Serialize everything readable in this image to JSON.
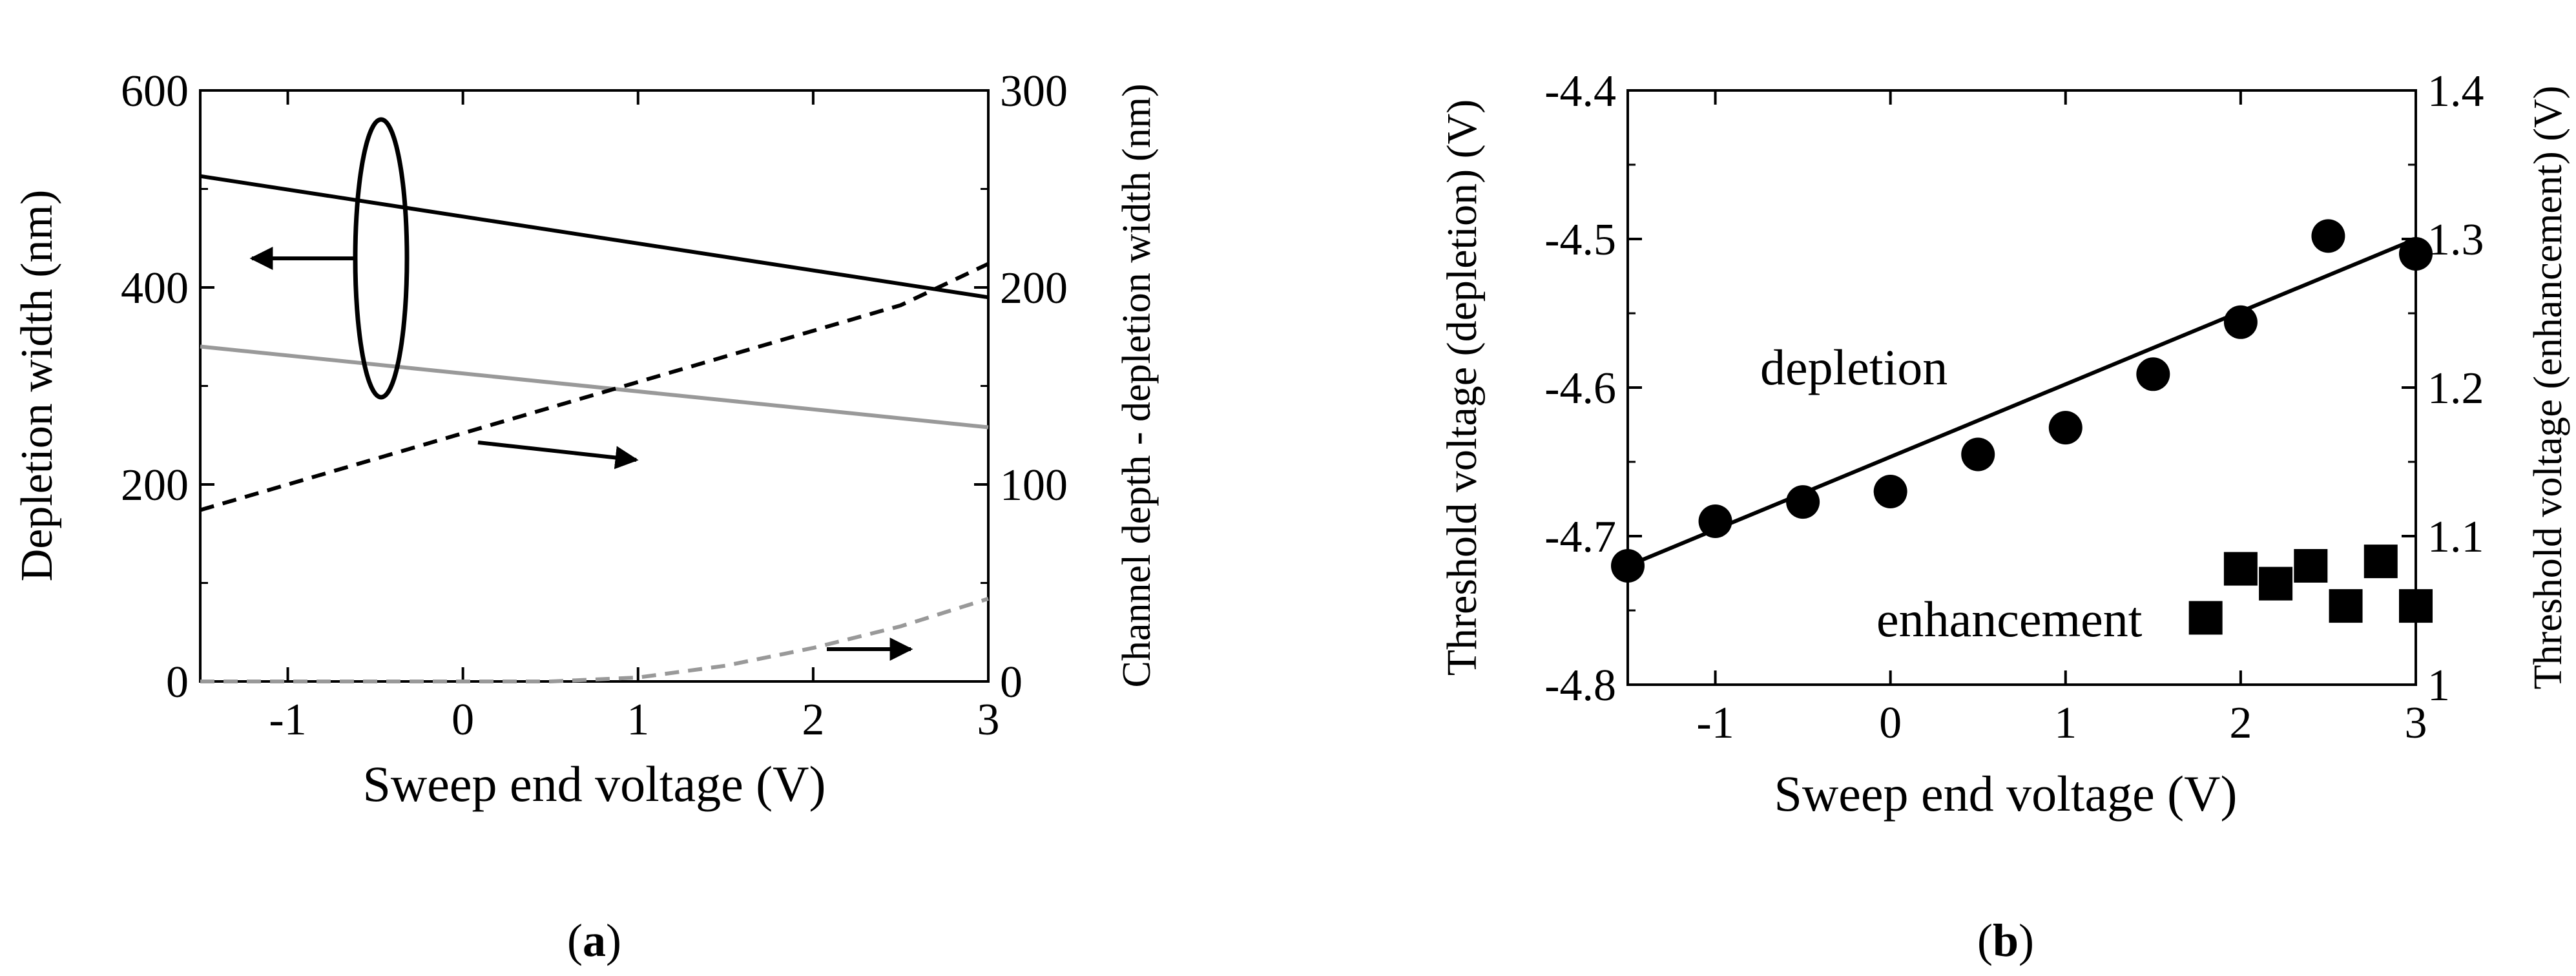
{
  "chart_data": [
    {
      "type": "line",
      "panel_label": "a",
      "xlabel": "Sweep end voltage (V)",
      "ylabel": "Depletion width (nm)",
      "y2label": "Channel depth - depletion width (nm)",
      "xlim": [
        -1.5,
        3
      ],
      "ylim": [
        0,
        600
      ],
      "y2lim": [
        0,
        300
      ],
      "xticks": [
        -1,
        0,
        1,
        2,
        3
      ],
      "yticks": [
        0,
        200,
        400,
        600
      ],
      "y2ticks": [
        0,
        100,
        200,
        300
      ],
      "series": [
        {
          "name": "depletion width (solid black)",
          "axis": "left",
          "color": "#000000",
          "dash": "solid",
          "x": [
            -1.5,
            3
          ],
          "y": [
            513,
            390
          ]
        },
        {
          "name": "depletion width (solid gray)",
          "axis": "left",
          "color": "#999999",
          "dash": "solid",
          "x": [
            -1.5,
            3
          ],
          "y": [
            340,
            258
          ]
        },
        {
          "name": "channel depth - depletion width (dashed black)",
          "axis": "right",
          "color": "#000000",
          "dash": "dashed",
          "x": [
            -1.5,
            -1,
            -0.5,
            0,
            0.5,
            1,
            1.5,
            2,
            2.5,
            3
          ],
          "y": [
            87,
            100,
            113,
            126,
            139,
            152,
            165,
            178,
            191,
            212
          ]
        },
        {
          "name": "channel depth - depletion width (dashed gray)",
          "axis": "right",
          "color": "#999999",
          "dash": "dashed",
          "x": [
            -1.5,
            0.5,
            1.0,
            1.5,
            2.0,
            2.5,
            3.0
          ],
          "y": [
            0,
            0,
            2,
            8,
            17,
            28,
            42
          ]
        }
      ]
    },
    {
      "type": "scatter",
      "panel_label": "b",
      "xlabel": "Sweep end voltage (V)",
      "ylabel": "Threshold voltage (depletion) (V)",
      "y2label": "Threshold voltage (enhancement) (V)",
      "xlim": [
        -1.5,
        3
      ],
      "ylim": [
        -4.8,
        -4.4
      ],
      "y2lim": [
        1.0,
        1.4
      ],
      "xticks": [
        -1,
        0,
        1,
        2,
        3
      ],
      "yticks": [
        -4.8,
        -4.7,
        -4.6,
        -4.5,
        -4.4
      ],
      "ytick_labels": [
        "-4.8",
        "-4.7",
        "-4.6",
        "-4.5",
        "-4.4"
      ],
      "y2ticks": [
        1.0,
        1.1,
        1.2,
        1.3,
        1.4
      ],
      "y2tick_labels": [
        "1",
        "1.1",
        "1.2",
        "1.3",
        "1.4"
      ],
      "annotations": [
        "depletion",
        "enhancement"
      ],
      "series": [
        {
          "name": "depletion",
          "axis": "left",
          "marker": "circle",
          "x": [
            -1.5,
            -1.0,
            -0.5,
            0.0,
            0.5,
            1.0,
            1.5,
            2.0,
            2.5,
            3.0
          ],
          "y": [
            -4.72,
            -4.69,
            -4.677,
            -4.67,
            -4.645,
            -4.627,
            -4.591,
            -4.556,
            -4.498,
            -4.51
          ]
        },
        {
          "name": "depletion fit",
          "axis": "left",
          "line": "solid",
          "x": [
            -1.5,
            3.0
          ],
          "y": [
            -4.72,
            -4.5
          ]
        },
        {
          "name": "enhancement",
          "axis": "right",
          "marker": "square",
          "x": [
            1.8,
            2.0,
            2.2,
            2.4,
            2.6,
            2.8,
            3.0
          ],
          "y": [
            1.045,
            1.078,
            1.068,
            1.08,
            1.053,
            1.083,
            1.053
          ]
        }
      ]
    }
  ]
}
